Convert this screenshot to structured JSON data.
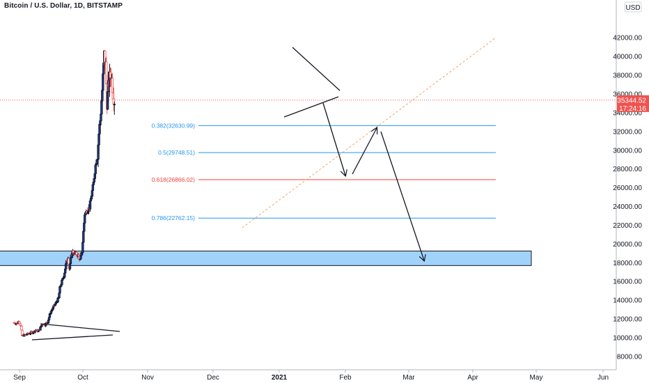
{
  "header": {
    "title": "Bitcoin / U.S. Dollar, 1D, BITSTAMP"
  },
  "price_axis": {
    "currency": "USD"
  },
  "last_price": {
    "value": "35344.52",
    "countdown": "17:24:16",
    "color": "#ef5350"
  },
  "fib_levels": [
    {
      "label": "0.382(32630.99)",
      "price": 32630.99,
      "color": "#2196f3"
    },
    {
      "label": "0.5(29748.51)",
      "price": 29748.51,
      "color": "#2196f3"
    },
    {
      "label": "0.618(26866.02)",
      "price": 26866.02,
      "color": "#f44336"
    },
    {
      "label": "0.786(22762.15)",
      "price": 22762.15,
      "color": "#2196f3"
    }
  ],
  "colors": {
    "up": "#131722",
    "down": "#ef5350",
    "bull_body": "#1e3a8a",
    "zone_fill": "#90caf9",
    "trend": "#f4a261"
  },
  "chart_data": {
    "type": "candlestick",
    "title": "Bitcoin / U.S. Dollar, 1D, BITSTAMP",
    "ylabel": "USD",
    "ylim": [
      6800,
      44500
    ],
    "y_ticks": [
      "8000.00",
      "10000.00",
      "12000.00",
      "14000.00",
      "16000.00",
      "18000.00",
      "20000.00",
      "22000.00",
      "24000.00",
      "26000.00",
      "28000.00",
      "30000.00",
      "32000.00",
      "34000.00",
      "36000.00",
      "38000.00",
      "40000.00",
      "42000.00"
    ],
    "x_ticks": [
      "Sep",
      "Oct",
      "Nov",
      "Dec",
      "2021",
      "Feb",
      "Mar",
      "Apr",
      "May",
      "Jun"
    ],
    "price_path": [
      [
        -8,
        11600
      ],
      [
        -4,
        11500
      ],
      [
        -1,
        11800
      ],
      [
        2,
        11200
      ],
      [
        4,
        10200
      ],
      [
        8,
        10300
      ],
      [
        12,
        10400
      ],
      [
        16,
        10500
      ],
      [
        20,
        10600
      ],
      [
        24,
        10800
      ],
      [
        28,
        10700
      ],
      [
        30,
        10900
      ],
      [
        34,
        11500
      ],
      [
        38,
        11400
      ],
      [
        42,
        11700
      ],
      [
        46,
        12700
      ],
      [
        50,
        13200
      ],
      [
        54,
        13700
      ],
      [
        58,
        14200
      ],
      [
        60,
        15300
      ],
      [
        63,
        16000
      ],
      [
        66,
        16600
      ],
      [
        69,
        17800
      ],
      [
        72,
        18600
      ],
      [
        74,
        17400
      ],
      [
        76,
        18400
      ],
      [
        79,
        19200
      ],
      [
        82,
        19000
      ],
      [
        85,
        18900
      ],
      [
        88,
        18700
      ],
      [
        90,
        18300
      ],
      [
        93,
        19200
      ],
      [
        95,
        21300
      ],
      [
        97,
        23200
      ],
      [
        100,
        23500
      ],
      [
        104,
        23900
      ],
      [
        107,
        25200
      ],
      [
        110,
        26500
      ],
      [
        113,
        28400
      ],
      [
        116,
        29600
      ],
      [
        118,
        31800
      ],
      [
        120,
        33200
      ],
      [
        123,
        36400
      ],
      [
        126,
        40100
      ],
      [
        128,
        39000
      ],
      [
        130,
        35200
      ],
      [
        133,
        37300
      ],
      [
        136,
        38200
      ],
      [
        139,
        36200
      ],
      [
        141,
        35344
      ]
    ],
    "support_zone": [
      17700,
      19250
    ],
    "last_price": 35344.52
  }
}
